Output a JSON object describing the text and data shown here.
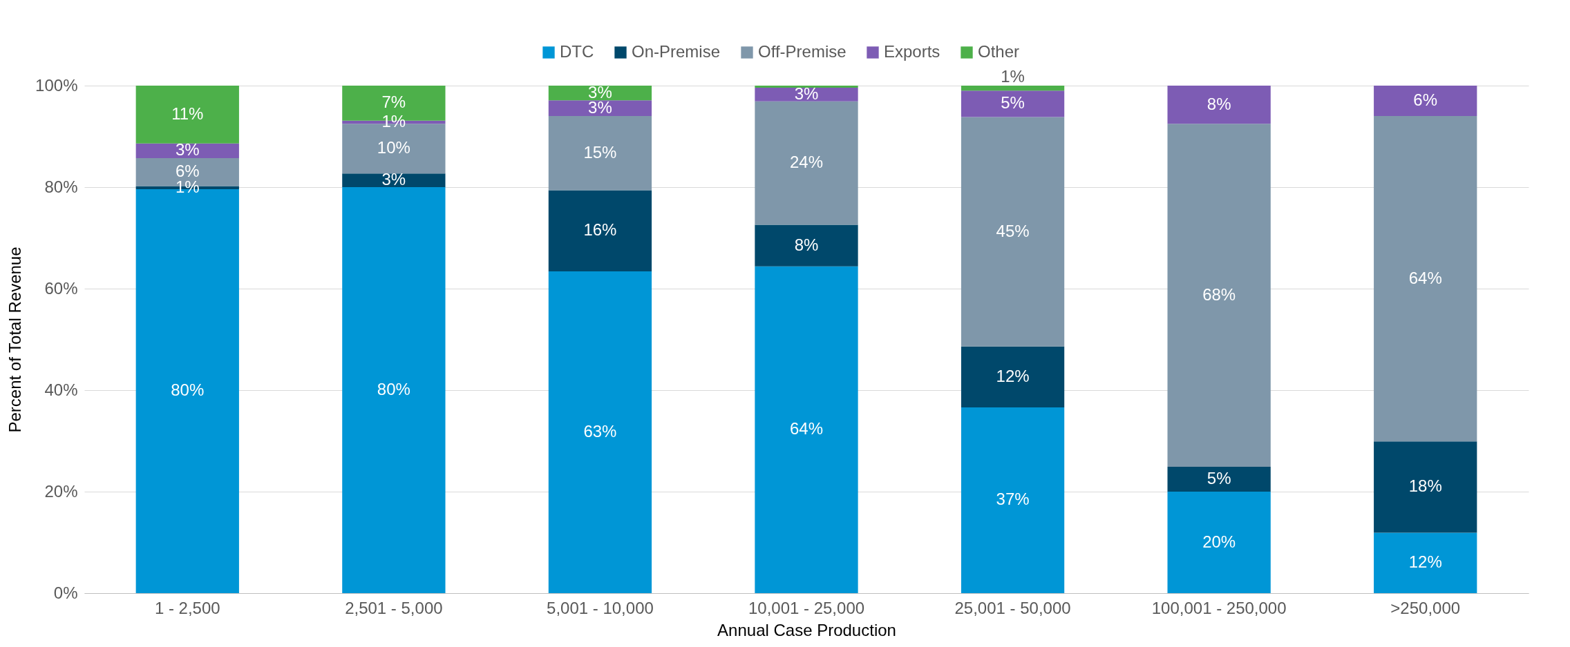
{
  "chart_data": {
    "type": "bar",
    "stacked": true,
    "xlabel": "Annual Case Production",
    "ylabel": "Percent of Total Revenue",
    "categories": [
      "1 - 2,500",
      "2,501 - 5,000",
      "5,001 - 10,000",
      "10,001 - 25,000",
      "25,001 - 50,000",
      "100,001 - 250,000",
      ">250,000"
    ],
    "series": [
      {
        "name": "DTC",
        "color": "#0096d6",
        "values": [
          79.6,
          80.0,
          63.4,
          64.4,
          36.6,
          20.0,
          11.9
        ],
        "value_labels": [
          "80%",
          "80%",
          "63%",
          "64%",
          "37%",
          "20%",
          "12%"
        ]
      },
      {
        "name": "On-Premise",
        "color": "#00486b",
        "values": [
          0.6,
          2.7,
          16.0,
          8.2,
          12.0,
          4.9,
          18.0
        ],
        "value_labels": [
          "1%",
          "3%",
          "16%",
          "8%",
          "12%",
          "5%",
          "18%"
        ]
      },
      {
        "name": "Off-Premise",
        "color": "#7f97aa",
        "values": [
          5.5,
          9.8,
          14.6,
          24.3,
          45.2,
          67.6,
          64.1
        ],
        "value_labels": [
          "6%",
          "10%",
          "15%",
          "24%",
          "45%",
          "68%",
          "64%"
        ]
      },
      {
        "name": "Exports",
        "color": "#7d5cb4",
        "values": [
          2.9,
          0.6,
          3.1,
          2.7,
          5.2,
          7.5,
          6.0
        ],
        "value_labels": [
          "3%",
          "1%",
          "3%",
          "3%",
          "5%",
          "8%",
          "6%"
        ]
      },
      {
        "name": "Other",
        "color": "#4db04a",
        "values": [
          11.4,
          6.9,
          2.9,
          0.4,
          1.0,
          null,
          null
        ],
        "value_labels": [
          "11%",
          "7%",
          "3%",
          null,
          "1%",
          null,
          null
        ]
      }
    ],
    "ylim": [
      0,
      100
    ],
    "yticks": [
      {
        "value": 0,
        "label": "0%"
      },
      {
        "value": 20,
        "label": "20%"
      },
      {
        "value": 40,
        "label": "40%"
      },
      {
        "value": 60,
        "label": "60%"
      },
      {
        "value": 80,
        "label": "80%"
      },
      {
        "value": 100,
        "label": "100%"
      }
    ],
    "grid": "y",
    "legend": "top"
  }
}
